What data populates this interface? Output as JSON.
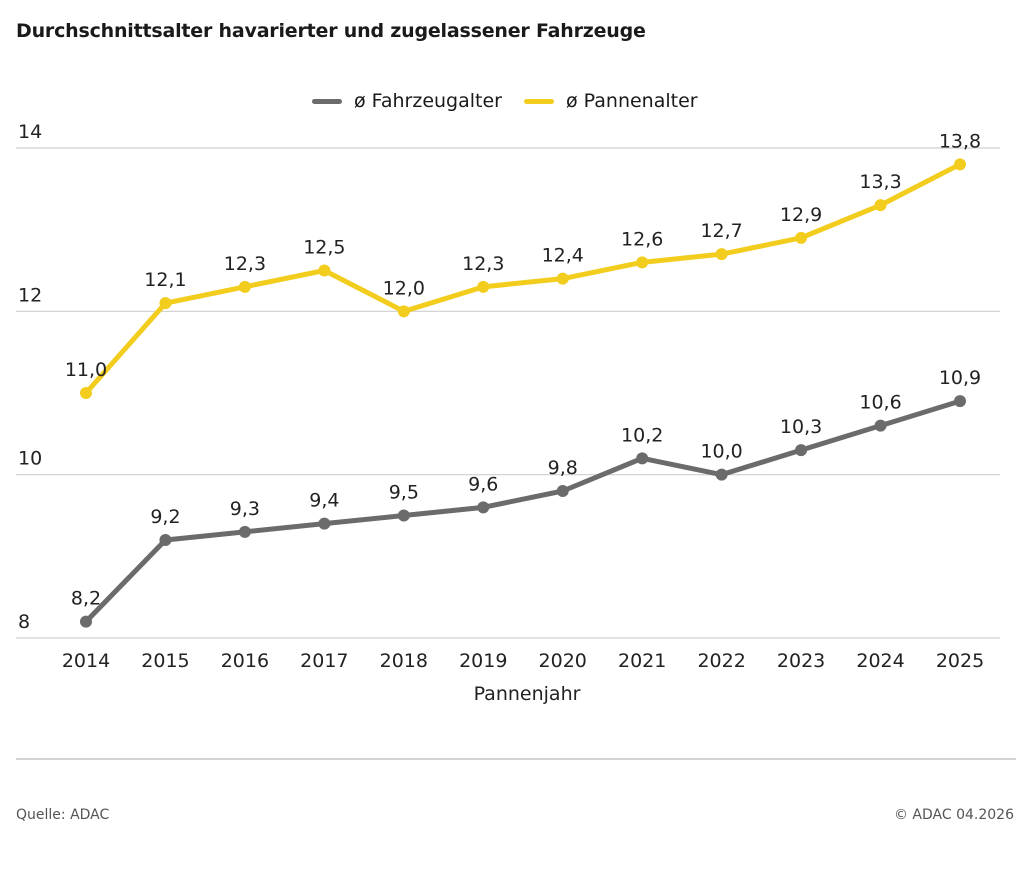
{
  "title": "Durchschnittsalter havarierter und zugelassener Fahrzeuge",
  "footer": {
    "source": "Quelle: ADAC",
    "copyright": "© ADAC 04.2026"
  },
  "chart_data": {
    "type": "line",
    "x": [
      "2014",
      "2015",
      "2016",
      "2017",
      "2018",
      "2019",
      "2020",
      "2021",
      "2022",
      "2023",
      "2024",
      "2025"
    ],
    "xlabel": "Pannenjahr",
    "ylabel": "",
    "ylim": [
      8,
      14
    ],
    "yticks": [
      "8",
      "10",
      "12",
      "14"
    ],
    "grid": true,
    "legend": "top-center",
    "series": [
      {
        "name": "ø Fahrzeugalter",
        "color": "#6b6b6b",
        "values": [
          8.2,
          9.2,
          9.3,
          9.4,
          9.5,
          9.6,
          9.8,
          10.2,
          10.0,
          10.3,
          10.6,
          10.9
        ],
        "labels": [
          "8,2",
          "9,2",
          "9,3",
          "9,4",
          "9,5",
          "9,6",
          "9,8",
          "10,2",
          "10,0",
          "10,3",
          "10,6",
          "10,9"
        ]
      },
      {
        "name": "ø Pannenalter",
        "color": "#f2cd1d",
        "values": [
          11.0,
          12.1,
          12.3,
          12.5,
          12.0,
          12.3,
          12.4,
          12.6,
          12.7,
          12.9,
          13.3,
          13.8
        ],
        "labels": [
          "11,0",
          "12,1",
          "12,3",
          "12,5",
          "12,0",
          "12,3",
          "12,4",
          "12,6",
          "12,7",
          "12,9",
          "13,3",
          "13,8"
        ]
      }
    ]
  }
}
